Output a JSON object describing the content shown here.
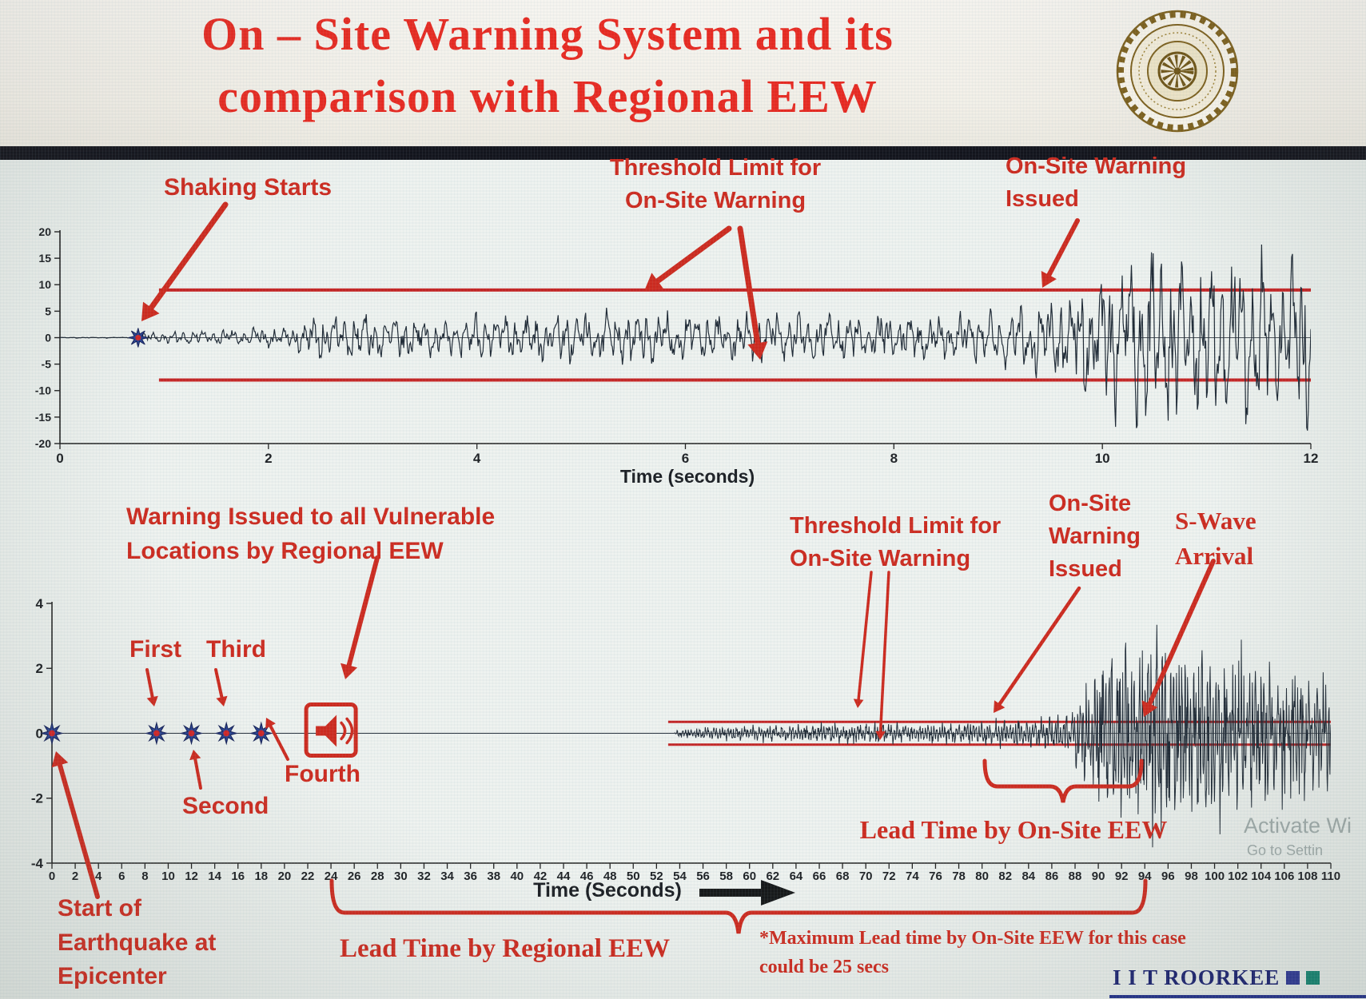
{
  "slide": {
    "title_line1": "On – Site Warning System and its",
    "title_line2": "comparison with Regional EEW",
    "footer_brand": "I I T ROORKEE",
    "watermark_line1": "Activate Wi",
    "watermark_line2": "Go to Settin"
  },
  "colors": {
    "title_red": "#e8231a",
    "annotation_red": "#cc2418",
    "threshold_red": "#c41f1f",
    "waveform": "#18232f",
    "navy": "#131b6b",
    "marker_blue": "#223a8c",
    "marker_center_red": "#cf1f1f",
    "footer_square_1": "#26318f",
    "footer_square_2": "#0c7f6b"
  },
  "annotations": {
    "top": {
      "shaking_starts": "Shaking Starts",
      "threshold_limit": "Threshold Limit for\nOn-Site Warning",
      "onsite_warning_issued": "On-Site Warning\nIssued"
    },
    "bottom": {
      "regional_warning": "Warning Issued to all Vulnerable\nLocations by Regional EEW",
      "p_first": "First",
      "p_second": "Second",
      "p_third": "Third",
      "p_fourth": "Fourth",
      "threshold_limit": "Threshold Limit for\nOn-Site Warning",
      "onsite_warning_issued": "On-Site\nWarning\nIssued",
      "s_wave_arrival": "S-Wave\nArrival",
      "lead_time_onsite": "Lead Time by On-Site EEW",
      "lead_time_regional": "Lead Time by Regional EEW",
      "max_lead_note": "*Maximum Lead time by On-Site EEW for this case\ncould be 25 secs",
      "start_of_earthquake": "Start of\nEarthquake at\nEpicenter"
    }
  },
  "chart_data": [
    {
      "id": "onsite",
      "type": "line",
      "title": "",
      "xlabel": "Time (seconds)",
      "ylabel": "",
      "xlim": [
        0,
        12
      ],
      "ylim": [
        -20,
        20
      ],
      "xticks": {
        "min": 0,
        "max": 12,
        "step": 2
      },
      "yticks": [
        -20,
        -15,
        -10,
        -5,
        0,
        5,
        10,
        15,
        20
      ],
      "grid": false,
      "legend": false,
      "threshold_upper": 9,
      "threshold_lower": -8,
      "threshold_x_start": 0.95,
      "shaking_start_x": 0.75,
      "envelope_keypoints": [
        [
          0,
          0.06
        ],
        [
          0.7,
          0.08
        ],
        [
          0.85,
          1.0
        ],
        [
          1.6,
          1.3
        ],
        [
          2.2,
          1.7
        ],
        [
          2.5,
          4.2
        ],
        [
          3.2,
          3.2
        ],
        [
          4.2,
          3.9
        ],
        [
          5.2,
          4.3
        ],
        [
          6.2,
          3.8
        ],
        [
          7.2,
          4.2
        ],
        [
          8.2,
          3.6
        ],
        [
          9.0,
          4.6
        ],
        [
          9.6,
          7.5
        ],
        [
          10.1,
          12
        ],
        [
          10.5,
          16
        ],
        [
          10.9,
          12
        ],
        [
          11.3,
          15
        ],
        [
          11.7,
          12
        ],
        [
          12,
          15
        ]
      ]
    },
    {
      "id": "regional",
      "type": "line",
      "title": "",
      "xlabel": "Time (Seconds)",
      "ylabel": "",
      "xlim": [
        0,
        110
      ],
      "ylim": [
        -4,
        4
      ],
      "xticks": {
        "min": 0,
        "max": 110,
        "step": 2
      },
      "yticks": [
        -4,
        -2,
        0,
        2,
        4
      ],
      "grid": false,
      "legend": false,
      "threshold_upper": 0.35,
      "threshold_lower": -0.35,
      "threshold_x_start": 53,
      "p_wave_markers_x": [
        0,
        9,
        12,
        15,
        18
      ],
      "regional_warning_x": 24,
      "onsite_warning_issued_x": 80,
      "s_wave_arrival_x": 93,
      "max_lead_time_secs": 25,
      "envelope_keypoints": [
        [
          0,
          0
        ],
        [
          53.5,
          0
        ],
        [
          54,
          0.12
        ],
        [
          58,
          0.18
        ],
        [
          62,
          0.22
        ],
        [
          66,
          0.26
        ],
        [
          70,
          0.28
        ],
        [
          74,
          0.24
        ],
        [
          78,
          0.3
        ],
        [
          82,
          0.34
        ],
        [
          86,
          0.42
        ],
        [
          88,
          0.8
        ],
        [
          89.5,
          1.9
        ],
        [
          91,
          2.7
        ],
        [
          93,
          2.2
        ],
        [
          95,
          2.9
        ],
        [
          97,
          2.4
        ],
        [
          99,
          2.7
        ],
        [
          101,
          2.2
        ],
        [
          104,
          2.0
        ],
        [
          107,
          1.8
        ],
        [
          110,
          1.5
        ]
      ]
    }
  ]
}
